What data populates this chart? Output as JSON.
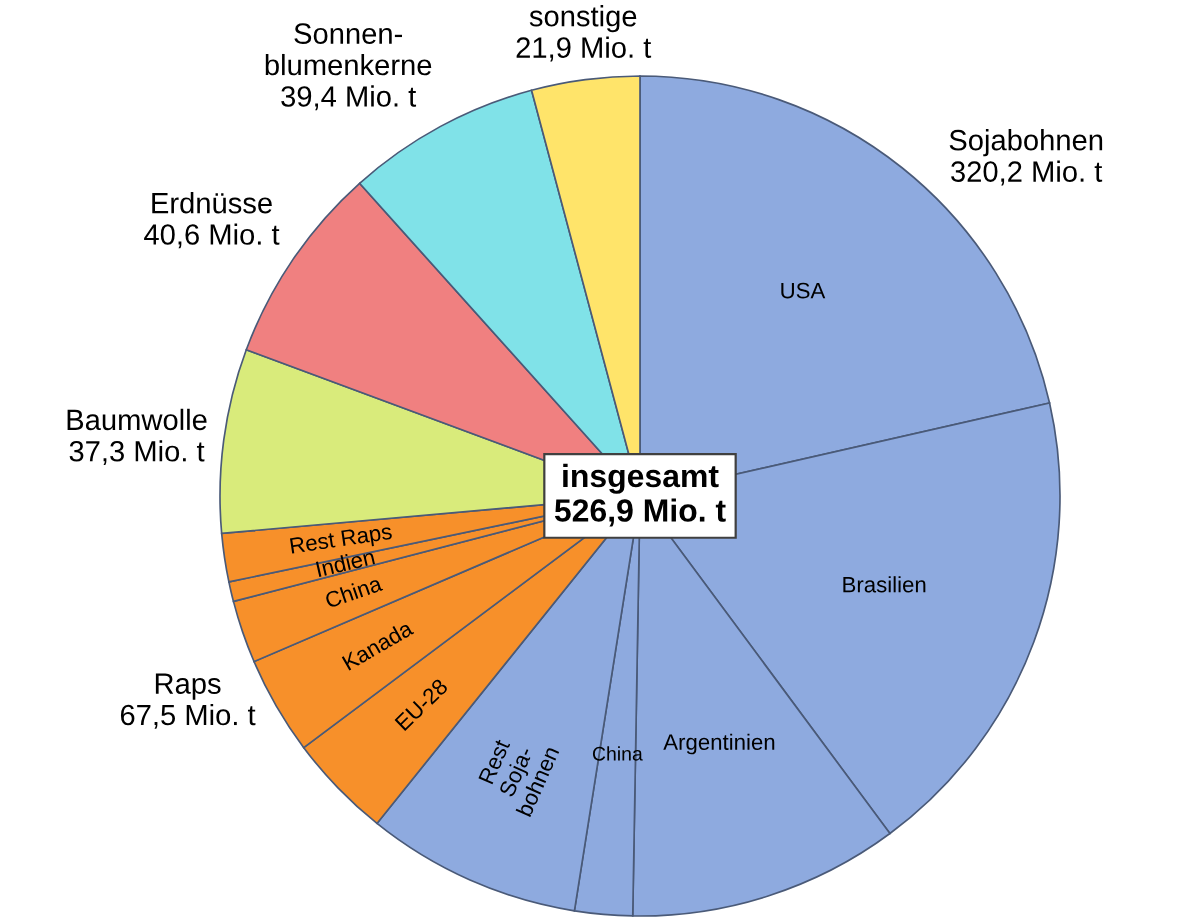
{
  "chart_data": {
    "type": "pie",
    "categories": [
      "USA",
      "Brasilien",
      "Argentinien",
      "China",
      "Rest\nSoja-\nbohnen",
      "EU-28",
      "Kanada",
      "China",
      "Indien",
      "Rest Raps",
      "Baumwolle",
      "Erdnüsse",
      "Sonnen-\nblumenkerne",
      "sonstige"
    ],
    "values": [
      113.0,
      97.0,
      54.9,
      11.7,
      43.6,
      21.1,
      19.9,
      12.7,
      4.0,
      9.8,
      37.3,
      40.6,
      39.4,
      21.9
    ],
    "colors": [
      "#8eaadf",
      "#8eaadf",
      "#8eaadf",
      "#8eaadf",
      "#8eaadf",
      "#f7902a",
      "#f7902a",
      "#f7902a",
      "#f7902a",
      "#f7902a",
      "#d9eb7b",
      "#f08080",
      "#80e2e8",
      "#ffe46a"
    ],
    "value_labels": [
      null,
      null,
      null,
      null,
      null,
      null,
      null,
      null,
      null,
      null,
      "37,3 Mio. t",
      "40,6 Mio. t",
      "39,4 Mio. t",
      "21,9 Mio. t"
    ],
    "annotations": [
      "insgesamt\n526,9 Mio. t",
      "Sojabohnen\n320,2 Mio. t",
      "Raps\n67,5 Mio. t"
    ]
  }
}
